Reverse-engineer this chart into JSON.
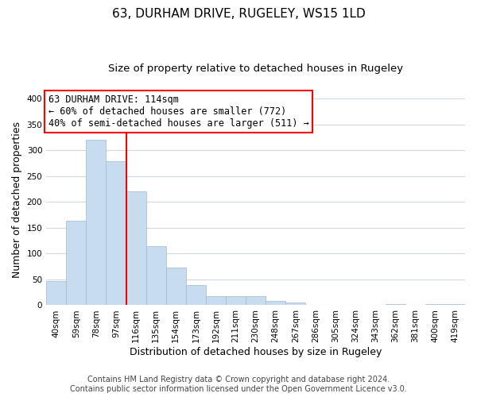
{
  "title": "63, DURHAM DRIVE, RUGELEY, WS15 1LD",
  "subtitle": "Size of property relative to detached houses in Rugeley",
  "xlabel": "Distribution of detached houses by size in Rugeley",
  "ylabel": "Number of detached properties",
  "bar_labels": [
    "40sqm",
    "59sqm",
    "78sqm",
    "97sqm",
    "116sqm",
    "135sqm",
    "154sqm",
    "173sqm",
    "192sqm",
    "211sqm",
    "230sqm",
    "248sqm",
    "267sqm",
    "286sqm",
    "305sqm",
    "324sqm",
    "343sqm",
    "362sqm",
    "381sqm",
    "400sqm",
    "419sqm"
  ],
  "bar_values": [
    47,
    163,
    321,
    279,
    221,
    114,
    73,
    39,
    18,
    18,
    17,
    9,
    5,
    0,
    0,
    0,
    0,
    3,
    0,
    3,
    2
  ],
  "bar_color": "#c8dcf0",
  "bar_edge_color": "#a0b8d0",
  "vline_color": "red",
  "annotation_line1": "63 DURHAM DRIVE: 114sqm",
  "annotation_line2": "← 60% of detached houses are smaller (772)",
  "annotation_line3": "40% of semi-detached houses are larger (511) →",
  "ylim": [
    0,
    410
  ],
  "yticks": [
    0,
    50,
    100,
    150,
    200,
    250,
    300,
    350,
    400
  ],
  "footer_line1": "Contains HM Land Registry data © Crown copyright and database right 2024.",
  "footer_line2": "Contains public sector information licensed under the Open Government Licence v3.0.",
  "bg_color": "#ffffff",
  "grid_color": "#d0d8e8",
  "title_fontsize": 11,
  "subtitle_fontsize": 9.5,
  "axis_label_fontsize": 9,
  "tick_fontsize": 7.5,
  "annotation_fontsize": 8.5,
  "footer_fontsize": 7
}
